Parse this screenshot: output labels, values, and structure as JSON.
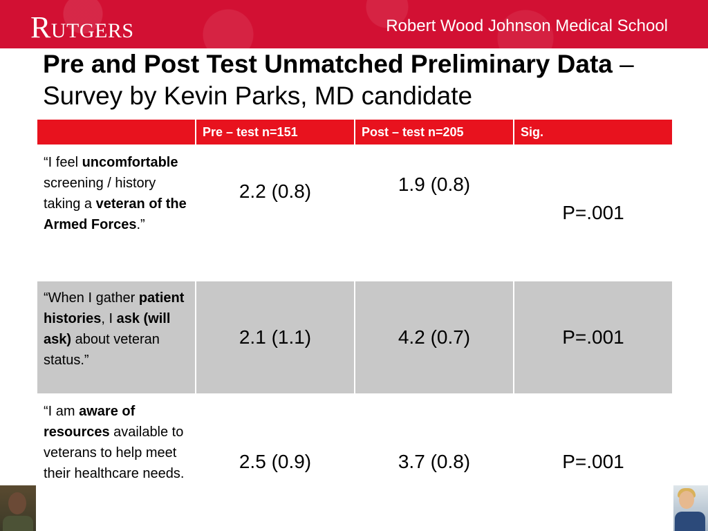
{
  "header": {
    "logo": {
      "cap": "R",
      "rest": "UTGERS"
    },
    "school": "Robert Wood Johnson Medical School"
  },
  "title": {
    "bold": "Pre and Post Test Unmatched Preliminary Data",
    "rest": " – Survey by Kevin Parks, MD candidate"
  },
  "table": {
    "headers": [
      "",
      "Pre – test n=151",
      "Post – test n=205",
      "Sig."
    ],
    "rows": [
      {
        "q": {
          "p1": "“I feel ",
          "b1": "uncomfortable",
          "p2": " screening / history taking a ",
          "b2": "veteran of the Armed Forces",
          "p3": ".”"
        },
        "pre": "2.2 (0.8)",
        "post": "1.9 (0.8)",
        "sig": "P=.001"
      },
      {
        "q": {
          "p1": "“When I gather ",
          "b1": "patient histories",
          "p2": ", I ",
          "b2": "ask (will ask)",
          "p3": " about veteran status.”"
        },
        "pre": "2.1 (1.1)",
        "post": "4.2 (0.7)",
        "sig": "P=.001"
      },
      {
        "q": {
          "p1": " “I am ",
          "b1": "aware of resources",
          "p2": " available to veterans to help meet their healthcare needs.",
          "b2": "",
          "p3": ""
        },
        "pre": "2.5 (0.9)",
        "post": "3.7 (0.8)",
        "sig": "P=.001"
      }
    ]
  },
  "colors": {
    "banner": "#d21033",
    "table_header": "#e8121e",
    "row_alt": "#c8c8c8"
  }
}
